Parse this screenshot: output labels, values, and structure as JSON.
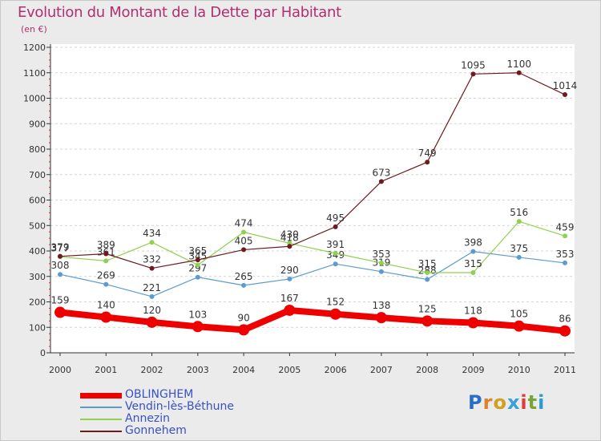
{
  "title": "Evolution du Montant de la Dette par Habitant",
  "unit": "(en €)",
  "brand": {
    "letters": [
      "P",
      "r",
      "o",
      "x",
      "i",
      "t",
      "i"
    ],
    "colors": [
      "#2b6cc4",
      "#e0802a",
      "#d2a020",
      "#3aa0d8",
      "#e23a3a",
      "#7aa33a",
      "#2b9ad8"
    ]
  },
  "chart_data": {
    "type": "line",
    "title": "Evolution du Montant de la Dette par Habitant",
    "ylabel": "(en €)",
    "xlabel": "",
    "x": [
      "2000",
      "2001",
      "2002",
      "2003",
      "2004",
      "2005",
      "2006",
      "2007",
      "2008",
      "2009",
      "2010",
      "2011"
    ],
    "ylim": [
      0,
      1200
    ],
    "yticks": [
      "0",
      "100",
      "200",
      "300",
      "400",
      "500",
      "600",
      "700",
      "800",
      "900",
      "1000",
      "1100",
      "1200"
    ],
    "grid": "horizontal",
    "legend_position": "bottom-left",
    "series": [
      {
        "name": "Vendin-lès-Béthune",
        "color": "#5b9bd0",
        "values": [
          308,
          269,
          221,
          297,
          265,
          290,
          349,
          319,
          288,
          398,
          375,
          353
        ],
        "labels": [
          "308",
          "269",
          "221",
          "297",
          "265",
          "290",
          "349",
          "319",
          "288",
          "398",
          "375",
          "353"
        ]
      },
      {
        "name": "Annezin",
        "color": "#8fd150",
        "values": [
          377,
          361,
          434,
          345,
          474,
          430,
          391,
          353,
          315,
          315,
          516,
          459
        ],
        "labels": [
          "377",
          "361",
          "434",
          "345",
          "474",
          "430",
          "391",
          "353",
          "315",
          "315",
          "516",
          "459"
        ]
      },
      {
        "name": "Gonnehem",
        "color": "#6e1a1e",
        "values": [
          379,
          389,
          332,
          365,
          405,
          418,
          495,
          673,
          749,
          1095,
          1100,
          1014
        ],
        "labels": [
          "379",
          "389",
          "332",
          "365",
          "405",
          "418",
          "495",
          "673",
          "749",
          "1095",
          "1100",
          "1014"
        ]
      },
      {
        "name": "OBLINGHEM",
        "color": "#ee0000",
        "values": [
          159,
          140,
          120,
          103,
          90,
          167,
          152,
          138,
          125,
          118,
          105,
          86
        ],
        "labels": [
          "159",
          "140",
          "120",
          "103",
          "90",
          "167",
          "152",
          "138",
          "125",
          "118",
          "105",
          "86"
        ]
      }
    ],
    "legend": [
      "OBLINGHEM",
      "Vendin-lès-Béthune",
      "Annezin",
      "Gonnehem"
    ]
  }
}
